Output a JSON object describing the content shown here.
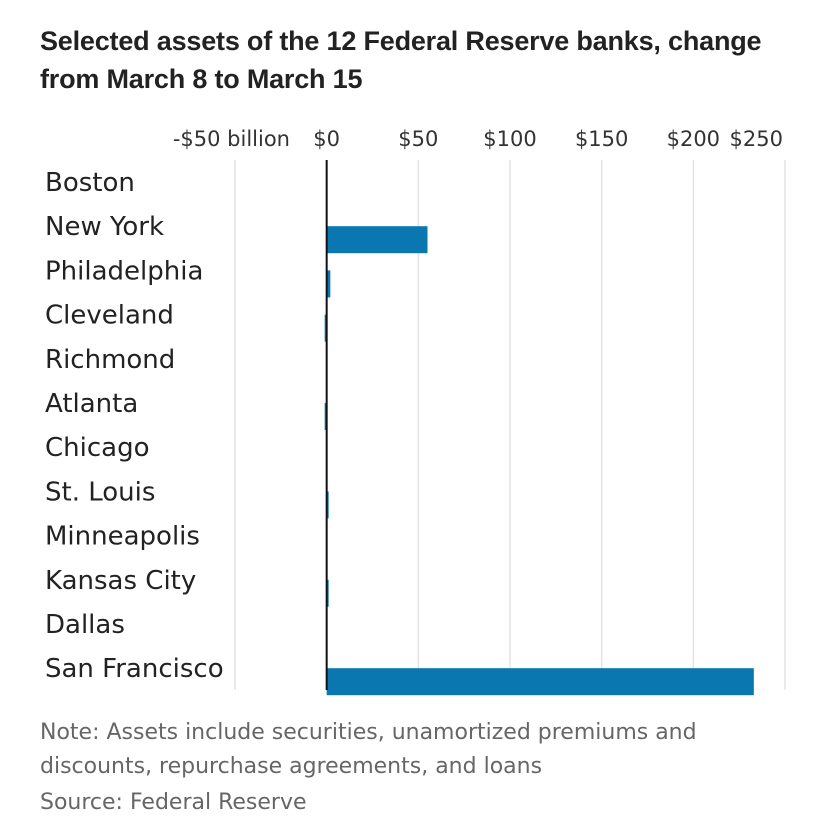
{
  "chart_data": {
    "type": "bar",
    "orientation": "horizontal",
    "title": "Selected assets of the 12 Federal Reserve banks, change from March 8 to March 15",
    "categories": [
      "Boston",
      "New York",
      "Philadelphia",
      "Cleveland",
      "Richmond",
      "Atlanta",
      "Chicago",
      "St. Louis",
      "Minneapolis",
      "Kansas City",
      "Dallas",
      "San Francisco"
    ],
    "values": [
      0,
      55,
      2,
      -0.5,
      0,
      -0.5,
      0,
      1,
      0,
      1,
      0,
      233
    ],
    "xlim": [
      -50,
      250
    ],
    "xticks": [
      -50,
      0,
      50,
      100,
      150,
      200,
      250
    ],
    "xtick_labels": [
      "-$50 billion",
      "$0",
      "$50",
      "$100",
      "$150",
      "$200",
      "$250"
    ],
    "grid": true,
    "bar_color": "#0a77b0",
    "gridline_color": "#e3e3e3",
    "zero_line_color": "#111111"
  },
  "note": "Note: Assets include securities, unamortized premiums and discounts, repurchase agreements, and loans",
  "source": "Source: Federal Reserve"
}
